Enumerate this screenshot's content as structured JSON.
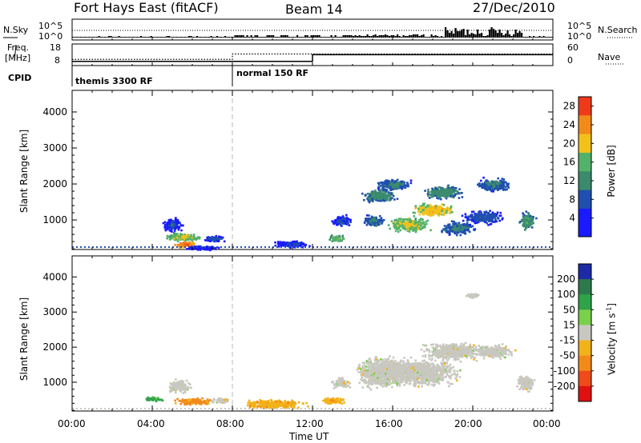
{
  "header": {
    "station": "Fort Hays East (fitACF)",
    "beam": "Beam 14",
    "date": "27/Dec/2010"
  },
  "top_panel": {
    "nsky_label": "N.Sky",
    "nsearch_label": "N.Search",
    "freq_label": "Freq.",
    "freq_unit": "[MHz]",
    "nave_label": "Nave",
    "cpid_label": "CPID",
    "nsky_ticks": [
      "10^5",
      "10^0"
    ],
    "freq_ticks": [
      "18",
      "8"
    ],
    "nave_ticks": [
      "60",
      "0"
    ],
    "right_top_ticks": [
      "10^5",
      "10^0"
    ],
    "cpid_segments": [
      {
        "label": "themis 3300 RF",
        "start_hour": 0
      },
      {
        "label": "normal 150 RF",
        "start_hour": 8
      }
    ]
  },
  "time_axis": {
    "ticks": [
      "00:00",
      "04:00",
      "08:00",
      "12:00",
      "16:00",
      "20:00",
      "00:00"
    ],
    "label": "Time UT"
  },
  "power_colorbar": {
    "title": "Power [dB]",
    "ticks": [
      "28",
      "24",
      "20",
      "16",
      "12",
      "8",
      "4"
    ]
  },
  "velocity_colorbar": {
    "title": "Velocity [m s",
    "title_sup": "-1",
    "title_end": "]",
    "ticks": [
      "200",
      "100",
      "50",
      "15",
      "-15",
      "-50",
      "-100",
      "-200"
    ]
  },
  "chart_data": [
    {
      "type": "heatmap",
      "panel": "power",
      "xlabel": "Time UT",
      "ylabel": "Slant Range [km]",
      "xlim_hours": [
        0,
        24
      ],
      "ylim": [
        180,
        4600
      ],
      "yticks": [
        1000,
        2000,
        3000,
        4000
      ],
      "colorbar": {
        "label": "Power [dB]",
        "range": [
          0,
          30
        ]
      },
      "blobs": [
        {
          "t": 5.6,
          "r": 350,
          "dt": 0.9,
          "dr": 150,
          "power": 27
        },
        {
          "t": 5.5,
          "r": 550,
          "dt": 1.4,
          "dr": 200,
          "power": 20
        },
        {
          "t": 5.0,
          "r": 900,
          "dt": 0.8,
          "dr": 300,
          "power": 8
        },
        {
          "t": 7.0,
          "r": 500,
          "dt": 0.9,
          "dr": 150,
          "power": 9
        },
        {
          "t": 6.5,
          "r": 250,
          "dt": 1.5,
          "dr": 100,
          "power": 6
        },
        {
          "t": 11.0,
          "r": 350,
          "dt": 1.6,
          "dr": 150,
          "power": 8
        },
        {
          "t": 13.2,
          "r": 500,
          "dt": 0.7,
          "dr": 150,
          "power": 18
        },
        {
          "t": 13.4,
          "r": 1000,
          "dt": 0.8,
          "dr": 250,
          "power": 9
        },
        {
          "t": 15.0,
          "r": 1000,
          "dt": 0.9,
          "dr": 250,
          "power": 12
        },
        {
          "t": 15.3,
          "r": 1700,
          "dt": 1.4,
          "dr": 300,
          "power": 14
        },
        {
          "t": 16.0,
          "r": 2000,
          "dt": 1.4,
          "dr": 250,
          "power": 12
        },
        {
          "t": 16.8,
          "r": 900,
          "dt": 1.6,
          "dr": 350,
          "power": 20
        },
        {
          "t": 18.0,
          "r": 1300,
          "dt": 1.6,
          "dr": 300,
          "power": 22
        },
        {
          "t": 18.5,
          "r": 1800,
          "dt": 1.5,
          "dr": 300,
          "power": 14
        },
        {
          "t": 19.2,
          "r": 800,
          "dt": 1.4,
          "dr": 300,
          "power": 12
        },
        {
          "t": 20.5,
          "r": 1100,
          "dt": 1.6,
          "dr": 300,
          "power": 10
        },
        {
          "t": 21.0,
          "r": 2000,
          "dt": 1.3,
          "dr": 300,
          "power": 12
        },
        {
          "t": 22.7,
          "r": 1000,
          "dt": 0.6,
          "dr": 400,
          "power": 15
        }
      ]
    },
    {
      "type": "heatmap",
      "panel": "velocity",
      "xlabel": "Time UT",
      "ylabel": "Slant Range [km]",
      "xlim_hours": [
        0,
        24
      ],
      "ylim": [
        180,
        4600
      ],
      "yticks": [
        1000,
        2000,
        3000,
        4000
      ],
      "colorbar": {
        "label": "Velocity [m s-1]",
        "range": [
          -250,
          250
        ]
      },
      "blobs": [
        {
          "t": 4.0,
          "r": 550,
          "dt": 0.7,
          "dr": 100,
          "velocity": 40
        },
        {
          "t": 6.0,
          "r": 480,
          "dt": 1.6,
          "dr": 150,
          "velocity": -60
        },
        {
          "t": 5.3,
          "r": 900,
          "dt": 1.0,
          "dr": 300,
          "velocity": 0
        },
        {
          "t": 7.4,
          "r": 500,
          "dt": 0.8,
          "dr": 120,
          "velocity": 0
        },
        {
          "t": 10.0,
          "r": 400,
          "dt": 2.6,
          "dr": 200,
          "velocity": -40
        },
        {
          "t": 13.0,
          "r": 500,
          "dt": 1.0,
          "dr": 150,
          "velocity": -40
        },
        {
          "t": 13.4,
          "r": 1000,
          "dt": 0.8,
          "dr": 250,
          "velocity": 0
        },
        {
          "t": 15.5,
          "r": 1300,
          "dt": 2.2,
          "dr": 700,
          "velocity": 0
        },
        {
          "t": 17.5,
          "r": 1300,
          "dt": 2.8,
          "dr": 600,
          "velocity": 0
        },
        {
          "t": 19.0,
          "r": 1900,
          "dt": 2.4,
          "dr": 400,
          "velocity": 0
        },
        {
          "t": 21.0,
          "r": 1900,
          "dt": 1.6,
          "dr": 300,
          "velocity": 0
        },
        {
          "t": 22.6,
          "r": 1000,
          "dt": 0.7,
          "dr": 400,
          "velocity": 0
        },
        {
          "t": 20.0,
          "r": 3500,
          "dt": 0.6,
          "dr": 100,
          "velocity": 0
        }
      ]
    },
    {
      "type": "line",
      "panel": "frequency",
      "ylabel": "Freq. [MHz]",
      "ylim": [
        8,
        18
      ],
      "series": [
        {
          "x_hours": [
            0,
            8,
            8,
            24
          ],
          "values": [
            10.4,
            10.4,
            13.2,
            13.2
          ]
        }
      ]
    },
    {
      "type": "line",
      "panel": "nave",
      "ylabel": "Nave",
      "ylim": [
        0,
        60
      ],
      "series": [
        {
          "x_hours": [
            0,
            12,
            12,
            24
          ],
          "values": [
            8,
            8,
            29,
            29
          ]
        }
      ]
    }
  ]
}
